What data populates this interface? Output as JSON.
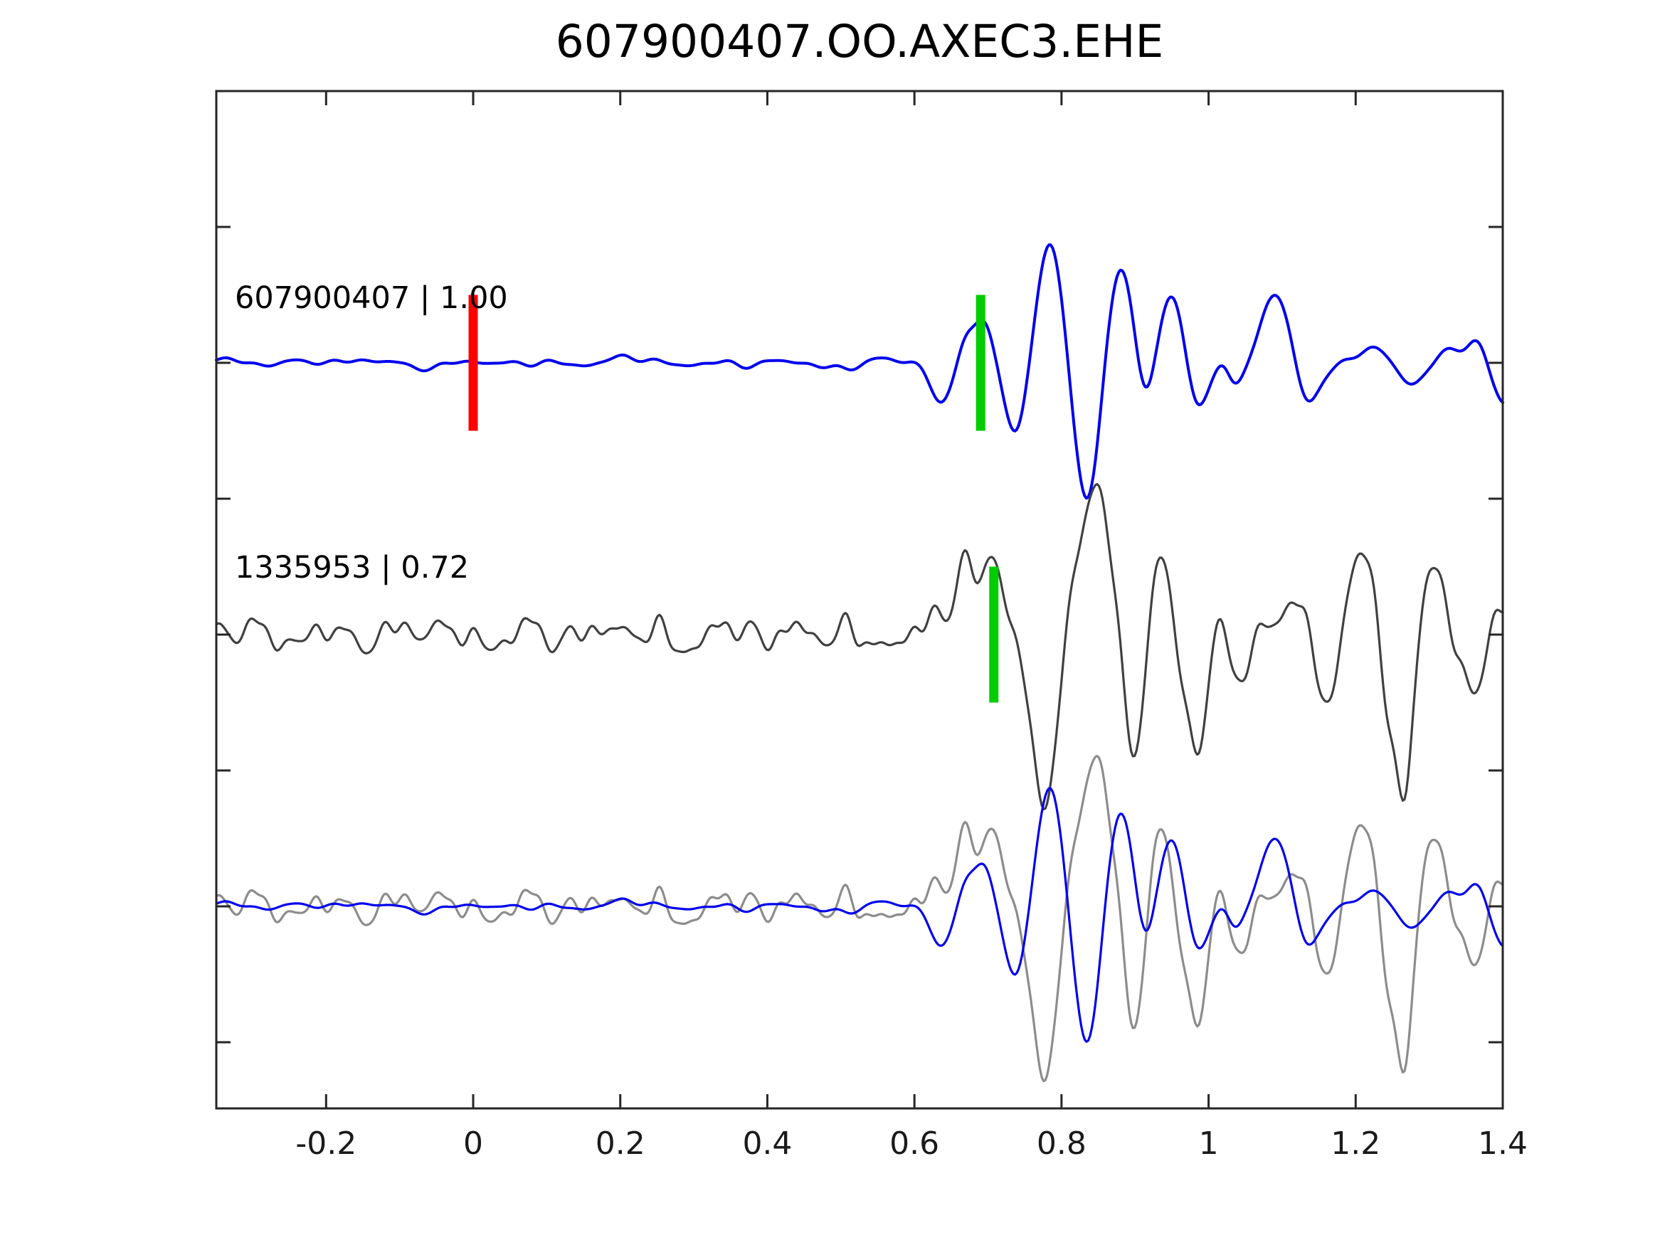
{
  "figure": {
    "title": "607900407.OO.AXEC3.EHE",
    "background_color": "#ffffff",
    "axis_color": "#262626"
  },
  "chart_data": {
    "type": "line",
    "title": "607900407.OO.AXEC3.EHE",
    "xlabel": "",
    "ylabel": "",
    "grid": false,
    "legend": "none",
    "xlim": [
      -0.3493,
      1.4
    ],
    "x_ticks": [
      -0.2,
      0,
      0.2,
      0.4,
      0.6,
      0.8,
      1,
      1.2,
      1.4
    ],
    "x_tick_labels": [
      "-0.2",
      "0",
      "0.2",
      "0.4",
      "0.6",
      "0.8",
      "1",
      "1.2",
      "1.4"
    ],
    "y_ticks_lane_units": [
      3,
      2,
      1,
      0,
      -1,
      -2,
      -3
    ],
    "pick_marker_half_height_lane_units": 0.5,
    "features_schema": "[time_s, amplitude_lane_units, gaussian_width_s]",
    "noise_schema": "[freq_hz, amplitude_lane_units, phase_rad]",
    "series": [
      {
        "name": "template-trace",
        "label": "607900407 | 1.00",
        "event_id": "607900407",
        "correlation": "1.00",
        "color": "#0000ee",
        "lane": 0,
        "picks": [
          {
            "name": "origin-marker",
            "t": 0.0,
            "color": "#ff0000"
          },
          {
            "name": "phase-pick-marker",
            "t": 0.69,
            "color": "#00cc00"
          }
        ],
        "noise_components": [
          [
            5.3,
            0.018,
            0.7
          ],
          [
            8.9,
            0.016,
            2.3
          ],
          [
            13.7,
            0.013,
            4.1
          ],
          [
            20.3,
            0.01,
            1.1
          ],
          [
            2.2,
            0.012,
            5.0
          ],
          [
            27.7,
            0.006,
            3.3
          ]
        ],
        "noise_envelope": [
          0.75,
          0.55
        ],
        "features": [
          [
            0.637,
            -0.33,
            0.02
          ],
          [
            0.669,
            0.18,
            0.015
          ],
          [
            0.694,
            0.3,
            0.018
          ],
          [
            0.74,
            -0.55,
            0.022
          ],
          [
            0.785,
            0.85,
            0.028
          ],
          [
            0.835,
            -1.06,
            0.026
          ],
          [
            0.878,
            0.78,
            0.026
          ],
          [
            0.914,
            -0.32,
            0.018
          ],
          [
            0.951,
            0.55,
            0.024
          ],
          [
            0.985,
            -0.42,
            0.022
          ],
          [
            1.021,
            0.1,
            0.014
          ],
          [
            1.035,
            -0.18,
            0.016
          ],
          [
            1.091,
            0.5,
            0.028
          ],
          [
            1.135,
            -0.38,
            0.022
          ],
          [
            1.229,
            0.1,
            0.025
          ],
          [
            1.282,
            -0.14,
            0.022
          ],
          [
            1.318,
            0.1,
            0.022
          ],
          [
            1.366,
            0.16,
            0.018
          ],
          [
            1.402,
            -0.25,
            0.022
          ]
        ]
      },
      {
        "name": "detection-trace",
        "label": "1335953 | 0.72",
        "event_id": "1335953",
        "correlation": "0.72",
        "color": "#404040",
        "lane": 1,
        "picks": [
          {
            "name": "phase-pick-marker",
            "t": 0.708,
            "color": "#00cc00"
          }
        ],
        "noise_components": [
          [
            16.3,
            0.055,
            0.3
          ],
          [
            11.1,
            0.05,
            2.9
          ],
          [
            23.7,
            0.042,
            1.7
          ],
          [
            7.3,
            0.04,
            4.4
          ],
          [
            31.9,
            0.028,
            0.9
          ],
          [
            4.1,
            0.03,
            3.6
          ],
          [
            43.1,
            0.016,
            2.2
          ]
        ],
        "noise_envelope": [
          0.85,
          0.3
        ],
        "features": [
          [
            0.667,
            0.62,
            0.018
          ],
          [
            0.706,
            0.6,
            0.016
          ],
          [
            0.735,
            0.15,
            0.012
          ],
          [
            0.762,
            -0.6,
            0.018
          ],
          [
            0.784,
            -1.02,
            0.02
          ],
          [
            0.845,
            1.18,
            0.032
          ],
          [
            0.897,
            -1.06,
            0.024
          ],
          [
            0.933,
            0.65,
            0.024
          ],
          [
            0.984,
            -0.88,
            0.024
          ],
          [
            1.014,
            0.35,
            0.018
          ],
          [
            1.046,
            -0.45,
            0.018
          ],
          [
            1.08,
            0.18,
            0.015
          ],
          [
            1.116,
            0.3,
            0.018
          ],
          [
            1.164,
            -0.62,
            0.022
          ],
          [
            1.208,
            0.78,
            0.024
          ],
          [
            1.247,
            -0.65,
            0.02
          ],
          [
            1.267,
            -0.9,
            0.014
          ],
          [
            1.305,
            0.42,
            0.022
          ],
          [
            1.357,
            -0.48,
            0.02
          ],
          [
            1.395,
            0.25,
            0.02
          ]
        ]
      },
      {
        "name": "overlay-detection-trace",
        "label": "",
        "color": "#8c8c8c",
        "lane": 2,
        "same_data_as": "detection-trace",
        "picks": []
      },
      {
        "name": "overlay-template-trace",
        "label": "",
        "color": "#0000ee",
        "lane": 2,
        "same_data_as": "template-trace",
        "picks": []
      }
    ]
  }
}
